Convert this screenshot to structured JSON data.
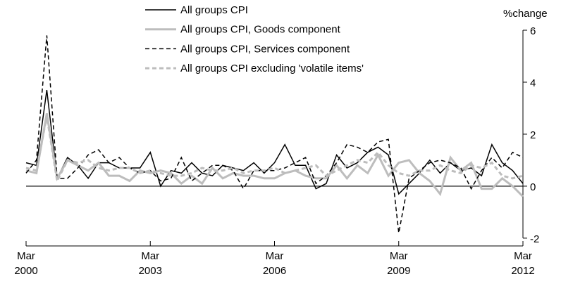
{
  "chart_data": {
    "type": "line",
    "y_axis_label": "%change",
    "categories": [
      "Mar 2000",
      null,
      null,
      null,
      null,
      null,
      null,
      null,
      null,
      null,
      null,
      null,
      "Mar 2003",
      null,
      null,
      null,
      null,
      null,
      null,
      null,
      null,
      null,
      null,
      null,
      "Mar 2006",
      null,
      null,
      null,
      null,
      null,
      null,
      null,
      null,
      null,
      null,
      null,
      "Mar 2009",
      null,
      null,
      null,
      null,
      null,
      null,
      null,
      null,
      null,
      null,
      null,
      "Mar 2012"
    ],
    "ylim": [
      -2.3,
      6
    ],
    "yticks": [
      -2,
      0,
      2,
      4,
      6
    ],
    "series": [
      {
        "name": "All groups CPI",
        "color": "#000000",
        "dash": "solid",
        "values": [
          0.9,
          0.8,
          3.7,
          0.3,
          1.1,
          0.8,
          0.3,
          0.9,
          0.9,
          0.7,
          0.7,
          0.7,
          1.3,
          0.0,
          0.6,
          0.5,
          0.9,
          0.5,
          0.4,
          0.8,
          0.7,
          0.6,
          0.9,
          0.5,
          0.9,
          1.6,
          0.8,
          0.8,
          -0.1,
          0.1,
          1.2,
          0.7,
          0.9,
          1.3,
          1.5,
          1.2,
          -0.3,
          0.1,
          0.5,
          1.0,
          0.5,
          0.9,
          0.6,
          0.7,
          0.4,
          1.6,
          0.9,
          0.6,
          0.1
        ]
      },
      {
        "name": "All groups CPI, Goods component",
        "color": "#bdbdbd",
        "dash": "solid",
        "values": [
          0.6,
          0.5,
          2.8,
          0.3,
          1.0,
          0.8,
          0.6,
          0.9,
          0.4,
          0.4,
          0.2,
          0.6,
          0.5,
          0.6,
          0.5,
          0.1,
          0.4,
          0.1,
          0.7,
          0.3,
          0.5,
          0.4,
          0.4,
          0.3,
          0.3,
          0.5,
          0.6,
          0.4,
          0.3,
          0.3,
          0.8,
          0.3,
          0.8,
          0.5,
          1.2,
          0.4,
          0.9,
          1.0,
          0.5,
          0.2,
          -0.3,
          1.1,
          0.6,
          0.9,
          -0.1,
          -0.1,
          0.3,
          0.0,
          -0.4
        ]
      },
      {
        "name": "All groups CPI, Services component",
        "color": "#000000",
        "dash": "dashed",
        "values": [
          0.5,
          1.0,
          5.8,
          0.3,
          0.3,
          0.7,
          1.2,
          1.4,
          0.9,
          1.1,
          0.7,
          0.5,
          0.6,
          0.2,
          0.3,
          1.1,
          0.2,
          0.5,
          0.8,
          0.8,
          0.6,
          -0.1,
          0.6,
          0.6,
          0.6,
          0.7,
          0.9,
          1.1,
          0.1,
          0.4,
          0.9,
          1.6,
          1.5,
          1.3,
          1.7,
          1.8,
          -1.8,
          0.3,
          0.6,
          0.9,
          1.0,
          0.9,
          0.7,
          -0.1,
          0.6,
          1.1,
          0.7,
          1.3,
          1.1
        ]
      },
      {
        "name": "All groups CPI excluding 'volatile items'",
        "color": "#bdbdbd",
        "dash": "dashed",
        "values": [
          0.7,
          0.6,
          2.7,
          0.2,
          1.0,
          0.9,
          1.0,
          0.7,
          0.6,
          0.7,
          0.7,
          0.5,
          0.6,
          0.5,
          0.4,
          0.4,
          0.5,
          0.7,
          0.6,
          0.6,
          0.7,
          0.5,
          0.6,
          0.6,
          0.7,
          0.5,
          0.6,
          0.7,
          0.8,
          0.4,
          0.6,
          0.8,
          1.0,
          0.9,
          1.3,
          0.8,
          0.5,
          0.4,
          0.6,
          0.6,
          0.8,
          0.6,
          0.5,
          0.8,
          0.7,
          0.9,
          0.4,
          0.3,
          0.4
        ]
      }
    ],
    "legend": "upper left"
  }
}
